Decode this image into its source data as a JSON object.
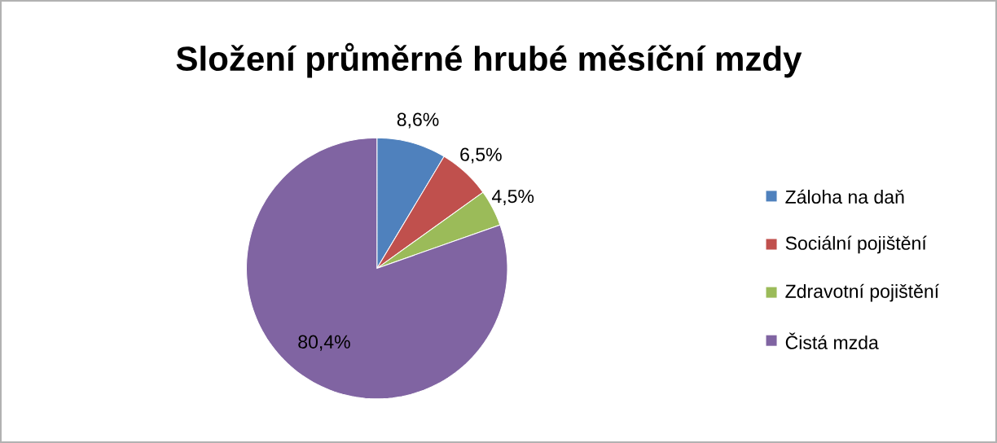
{
  "chart_data": {
    "type": "pie",
    "title": "Složení průměrné hrubé měsíční mzdy",
    "categories": [
      "Záloha na daň",
      "Sociální pojištění",
      "Zdravotní pojištění",
      "Čistá mzda"
    ],
    "values": [
      8.6,
      6.5,
      4.5,
      80.4
    ],
    "colors": [
      "#4f81bd",
      "#c0504d",
      "#9bbb59",
      "#8064a2"
    ],
    "value_labels": [
      "8,6%",
      "6,5%",
      "4,5%",
      "80,4%"
    ],
    "legend": "right"
  }
}
